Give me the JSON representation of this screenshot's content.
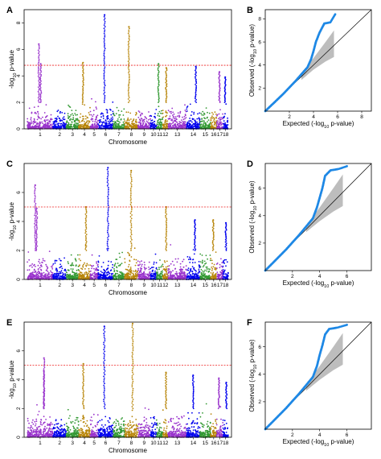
{
  "chart_data": [
    {
      "panel": "A",
      "type": "scatter",
      "kind": "manhattan",
      "xlabel": "Chromosome",
      "ylabel": "-log10 p-value",
      "ylim": [
        0,
        9
      ],
      "yticks": [
        0,
        2,
        4,
        6,
        8
      ],
      "threshold": 4.8,
      "chromosomes": [
        "1",
        "2",
        "3",
        "4",
        "5",
        "6",
        "7",
        "8",
        "9",
        "10",
        "11",
        "12",
        "13",
        "14",
        "15",
        "16",
        "17",
        "18"
      ],
      "chrom_sizes": [
        29,
        15,
        14,
        13,
        9,
        17,
        13,
        15,
        14,
        7,
        7,
        6,
        21,
        15,
        12,
        7,
        7,
        6
      ],
      "colors": [
        "#9933cc",
        "#0000ee",
        "#339933",
        "#b8860b"
      ],
      "peaks": [
        {
          "chrom": "1",
          "value": 6.4
        },
        {
          "chrom": "1",
          "value": 4.9
        },
        {
          "chrom": "4",
          "value": 5.0
        },
        {
          "chrom": "6",
          "value": 8.6
        },
        {
          "chrom": "8",
          "value": 7.7
        },
        {
          "chrom": "11",
          "value": 4.9
        },
        {
          "chrom": "12",
          "value": 4.6
        },
        {
          "chrom": "14",
          "value": 4.7
        },
        {
          "chrom": "17",
          "value": 4.3
        },
        {
          "chrom": "18",
          "value": 3.9
        }
      ]
    },
    {
      "panel": "B",
      "type": "scatter",
      "kind": "qq",
      "xlabel": "Expected (-log10 p-value)",
      "ylabel": "Observed (-log10 p-value)",
      "xlim": [
        0,
        8.8
      ],
      "ylim": [
        0,
        8.8
      ],
      "xticks": [
        2,
        4,
        6,
        8
      ],
      "yticks": [
        2,
        4,
        6,
        8
      ],
      "points": [
        [
          0.5,
          0.5
        ],
        [
          1,
          1
        ],
        [
          1.5,
          1.5
        ],
        [
          2,
          2.05
        ],
        [
          2.5,
          2.6
        ],
        [
          3,
          3.2
        ],
        [
          3.5,
          3.8
        ],
        [
          3.8,
          4.5
        ],
        [
          4,
          5.2
        ],
        [
          4.2,
          6.0
        ],
        [
          4.5,
          6.8
        ],
        [
          4.9,
          7.6
        ],
        [
          5.4,
          7.7
        ],
        [
          5.8,
          8.4
        ]
      ],
      "band": [
        [
          3,
          3.3,
          2.7
        ],
        [
          4,
          4.6,
          3.6
        ],
        [
          5,
          6.0,
          4.3
        ],
        [
          5.7,
          7.0,
          4.7
        ]
      ]
    },
    {
      "panel": "C",
      "type": "scatter",
      "kind": "manhattan",
      "xlabel": "Chromosome",
      "ylabel": "-log10 p-value",
      "ylim": [
        0,
        8
      ],
      "yticks": [
        0,
        2,
        4,
        6
      ],
      "threshold": 5.0,
      "chromosomes": [
        "1",
        "2",
        "3",
        "4",
        "5",
        "6",
        "7",
        "8",
        "9",
        "10",
        "11",
        "12",
        "13",
        "14",
        "15",
        "16",
        "17",
        "18"
      ],
      "chrom_sizes": [
        29,
        15,
        14,
        13,
        9,
        17,
        13,
        15,
        14,
        7,
        7,
        6,
        21,
        15,
        12,
        7,
        7,
        6
      ],
      "colors": [
        "#9933cc",
        "#0000ee",
        "#339933",
        "#b8860b"
      ],
      "peaks": [
        {
          "chrom": "1",
          "value": 6.5
        },
        {
          "chrom": "1",
          "value": 4.9
        },
        {
          "chrom": "4",
          "value": 5.0
        },
        {
          "chrom": "6",
          "value": 7.7
        },
        {
          "chrom": "8",
          "value": 7.5
        },
        {
          "chrom": "12",
          "value": 5.0
        },
        {
          "chrom": "14",
          "value": 4.1
        },
        {
          "chrom": "16",
          "value": 4.1
        },
        {
          "chrom": "18",
          "value": 3.9
        }
      ]
    },
    {
      "panel": "D",
      "type": "scatter",
      "kind": "qq",
      "xlabel": "Expected (-log10 p-value)",
      "ylabel": "Observed (-log10 p-value)",
      "xlim": [
        0,
        7.8
      ],
      "ylim": [
        0,
        7.8
      ],
      "xticks": [
        2,
        4,
        6
      ],
      "yticks": [
        2,
        4,
        6
      ],
      "points": [
        [
          0.5,
          0.5
        ],
        [
          1,
          1
        ],
        [
          1.5,
          1.5
        ],
        [
          2,
          2.05
        ],
        [
          2.5,
          2.6
        ],
        [
          3,
          3.2
        ],
        [
          3.5,
          3.8
        ],
        [
          3.8,
          4.6
        ],
        [
          4,
          5.3
        ],
        [
          4.2,
          6.0
        ],
        [
          4.4,
          6.9
        ],
        [
          4.8,
          7.3
        ],
        [
          5.4,
          7.4
        ],
        [
          6,
          7.6
        ]
      ],
      "band": [
        [
          3,
          3.3,
          2.8
        ],
        [
          4,
          4.6,
          3.6
        ],
        [
          5,
          6.0,
          4.3
        ],
        [
          5.7,
          7.0,
          4.7
        ]
      ]
    },
    {
      "panel": "E",
      "type": "scatter",
      "kind": "manhattan",
      "xlabel": "Chromosome",
      "ylabel": "-log10 p-value",
      "ylim": [
        0,
        8
      ],
      "yticks": [
        0,
        2,
        4,
        6
      ],
      "threshold": 5.0,
      "chromosomes": [
        "1",
        "2",
        "3",
        "4",
        "5",
        "6",
        "7",
        "8",
        "9",
        "10",
        "11",
        "12",
        "13",
        "14",
        "15",
        "16",
        "17",
        "18"
      ],
      "chrom_sizes": [
        29,
        15,
        14,
        13,
        9,
        17,
        13,
        15,
        14,
        7,
        7,
        6,
        21,
        15,
        12,
        7,
        7,
        6
      ],
      "colors": [
        "#9933cc",
        "#0000ee",
        "#339933",
        "#b8860b"
      ],
      "peaks": [
        {
          "chrom": "1",
          "value": 5.5
        },
        {
          "chrom": "1",
          "value": 4.6
        },
        {
          "chrom": "4",
          "value": 5.1
        },
        {
          "chrom": "6",
          "value": 7.7
        },
        {
          "chrom": "8",
          "value": 7.9
        },
        {
          "chrom": "12",
          "value": 4.5
        },
        {
          "chrom": "14",
          "value": 4.3
        },
        {
          "chrom": "17",
          "value": 4.1
        },
        {
          "chrom": "18",
          "value": 3.8
        }
      ]
    },
    {
      "panel": "F",
      "type": "scatter",
      "kind": "qq",
      "xlabel": "Expected (-log10 p-value)",
      "ylabel": "Observed (-log10 p-value)",
      "xlim": [
        0,
        7.8
      ],
      "ylim": [
        0,
        7.8
      ],
      "xticks": [
        2,
        4,
        6
      ],
      "yticks": [
        2,
        4,
        6
      ],
      "points": [
        [
          0.5,
          0.5
        ],
        [
          1,
          1
        ],
        [
          1.5,
          1.5
        ],
        [
          2,
          2.05
        ],
        [
          2.5,
          2.6
        ],
        [
          3,
          3.2
        ],
        [
          3.5,
          3.8
        ],
        [
          3.8,
          4.6
        ],
        [
          4,
          5.4
        ],
        [
          4.2,
          6.1
        ],
        [
          4.4,
          6.9
        ],
        [
          4.7,
          7.3
        ],
        [
          5.3,
          7.4
        ],
        [
          6,
          7.6
        ]
      ],
      "band": [
        [
          3,
          3.3,
          2.8
        ],
        [
          4,
          4.6,
          3.6
        ],
        [
          5,
          6.0,
          4.3
        ],
        [
          5.7,
          7.0,
          4.7
        ]
      ]
    }
  ]
}
